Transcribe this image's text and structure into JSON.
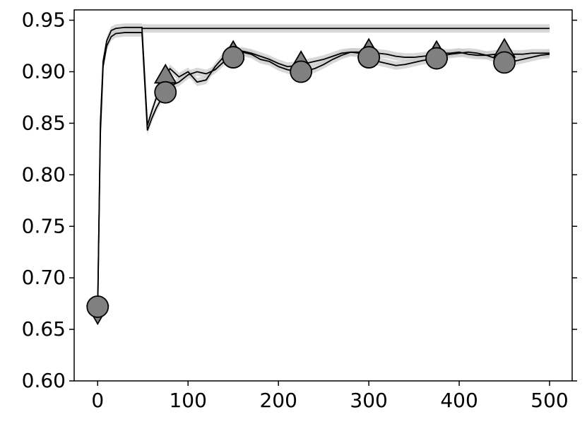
{
  "chart_data": {
    "type": "line",
    "x": [
      0,
      3,
      6,
      10,
      15,
      20,
      30,
      40,
      49,
      55,
      60,
      65,
      70,
      75,
      80,
      90,
      100,
      110,
      120,
      130,
      140,
      150,
      160,
      170,
      180,
      190,
      200,
      210,
      220,
      225,
      230,
      240,
      250,
      260,
      270,
      280,
      290,
      300,
      310,
      320,
      330,
      340,
      350,
      360,
      370,
      375,
      380,
      390,
      400,
      410,
      420,
      430,
      440,
      450,
      460,
      470,
      480,
      490,
      500
    ],
    "marker_x": [
      0,
      75,
      150,
      225,
      300,
      375,
      450
    ],
    "series": [
      {
        "color": "#000000",
        "marker": "triangle",
        "marker_color": "#808080",
        "band": 0.004,
        "values": [
          0.667,
          0.85,
          0.91,
          0.93,
          0.94,
          0.942,
          0.943,
          0.943,
          0.943,
          0.848,
          0.862,
          0.875,
          0.888,
          0.895,
          0.903,
          0.895,
          0.9,
          0.89,
          0.892,
          0.905,
          0.915,
          0.918,
          0.92,
          0.918,
          0.915,
          0.912,
          0.908,
          0.905,
          0.906,
          0.908,
          0.908,
          0.91,
          0.912,
          0.915,
          0.918,
          0.919,
          0.919,
          0.92,
          0.918,
          0.917,
          0.915,
          0.914,
          0.914,
          0.915,
          0.916,
          0.918,
          0.918,
          0.918,
          0.919,
          0.917,
          0.916,
          0.916,
          0.917,
          0.92,
          0.917,
          0.917,
          0.918,
          0.918,
          0.918
        ]
      },
      {
        "color": "#000000",
        "marker": "circle",
        "marker_color": "#808080",
        "band": 0.004,
        "values": [
          0.672,
          0.84,
          0.905,
          0.925,
          0.934,
          0.937,
          0.938,
          0.938,
          0.938,
          0.843,
          0.855,
          0.865,
          0.873,
          0.88,
          0.886,
          0.89,
          0.897,
          0.9,
          0.898,
          0.902,
          0.91,
          0.914,
          0.919,
          0.917,
          0.912,
          0.91,
          0.905,
          0.902,
          0.9,
          0.9,
          0.901,
          0.903,
          0.907,
          0.912,
          0.916,
          0.919,
          0.918,
          0.914,
          0.91,
          0.908,
          0.906,
          0.907,
          0.909,
          0.911,
          0.912,
          0.913,
          0.915,
          0.917,
          0.918,
          0.919,
          0.918,
          0.916,
          0.913,
          0.909,
          0.91,
          0.912,
          0.914,
          0.916,
          0.917
        ]
      },
      {
        "color": "#000000",
        "band": 0.004,
        "values": [
          null,
          null,
          null,
          null,
          null,
          null,
          null,
          null,
          0.942,
          0.942,
          0.942,
          0.942,
          0.942,
          0.942,
          0.942,
          0.942,
          0.942,
          0.942,
          0.942,
          0.942,
          0.942,
          0.942,
          0.942,
          0.942,
          0.942,
          0.942,
          0.942,
          0.942,
          0.942,
          0.942,
          0.942,
          0.942,
          0.942,
          0.942,
          0.942,
          0.942,
          0.942,
          0.942,
          0.942,
          0.942,
          0.942,
          0.942,
          0.942,
          0.942,
          0.942,
          0.942,
          0.942,
          0.942,
          0.942,
          0.942,
          0.942,
          0.942,
          0.942,
          0.942,
          0.942,
          0.942,
          0.942,
          0.942,
          0.942
        ]
      }
    ],
    "band_color": "#c8c8c8",
    "xlim": [
      -26,
      525
    ],
    "xticks": [
      0,
      100,
      200,
      300,
      400,
      500
    ],
    "ylim": [
      0.6,
      0.96
    ],
    "yticks": [
      {
        "value": 0.6,
        "label": "0.60"
      },
      0.65,
      {
        "value": 0.7,
        "label": "0.70"
      },
      0.75,
      {
        "value": 0.8,
        "label": "0.80"
      },
      0.85,
      {
        "value": 0.9,
        "label": "0.90"
      },
      0.95
    ]
  }
}
